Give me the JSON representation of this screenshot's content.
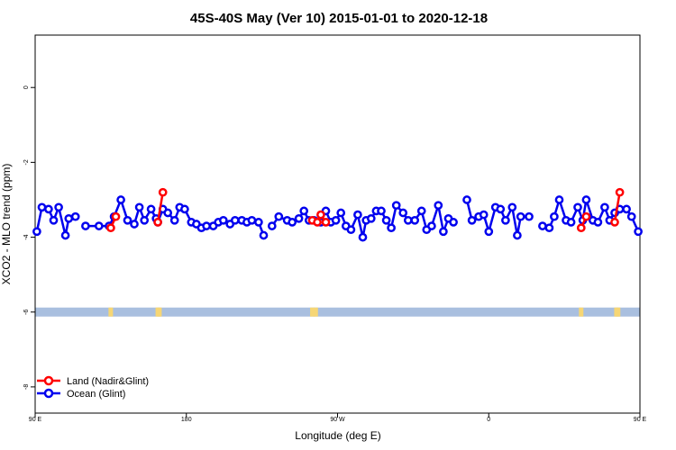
{
  "chart_data": {
    "type": "line",
    "title": "45S-40S May (Ver 10)   2015-01-01 to 2020-12-18",
    "xlabel": "Longitude (deg E)",
    "ylabel": "XCO2 - MLO trend (ppm)",
    "xlim": [
      90,
      450
    ],
    "ylim": [
      -8.7,
      1.4
    ],
    "x_ticks": [
      {
        "value": 90,
        "label": "90 E"
      },
      {
        "value": 180,
        "label": "180"
      },
      {
        "value": 270,
        "label": "90 W"
      },
      {
        "value": 360,
        "label": "0"
      },
      {
        "value": 450,
        "label": "90 E"
      },
      {
        "value": 540,
        "label": "180"
      }
    ],
    "y_ticks": [
      {
        "value": 0,
        "label": "0"
      },
      {
        "value": -2,
        "label": "-2"
      },
      {
        "value": -4,
        "label": "-4"
      },
      {
        "value": -6,
        "label": "-6"
      },
      {
        "value": -8,
        "label": "-8"
      }
    ],
    "grid": false,
    "legend_position": "bottom-left",
    "colors": {
      "land": "#ff0000",
      "ocean": "#0000ee",
      "map_ocean": "#a9bfdf",
      "map_land": "#f6d675"
    },
    "surface_strip": {
      "y": -6,
      "land_longitudes": [
        135,
        163,
        164,
        255,
        257,
        415,
        436,
        437
      ]
    },
    "series": [
      {
        "name": "Land (Nadir&Glint)",
        "color": "#ff0000",
        "segments": [
          [
            [
              135,
              -3.75
            ],
            [
              138,
              -3.45
            ]
          ],
          [
            [
              163,
              -3.6
            ],
            [
              166,
              -2.8
            ]
          ],
          [
            [
              255,
              -3.55
            ],
            [
              258,
              -3.6
            ]
          ],
          [
            [
              260,
              -3.4
            ],
            [
              263,
              -3.6
            ]
          ],
          [
            [
              415,
              -3.75
            ],
            [
              418,
              -3.45
            ]
          ],
          [
            [
              435,
              -3.6
            ],
            [
              438,
              -2.8
            ]
          ]
        ]
      },
      {
        "name": "Ocean (Glint)",
        "color": "#0000ee",
        "segments": [
          [
            [
              91,
              -3.85
            ],
            [
              94,
              -3.2
            ],
            [
              98,
              -3.25
            ],
            [
              101,
              -3.55
            ],
            [
              104,
              -3.2
            ],
            [
              108,
              -3.95
            ],
            [
              110,
              -3.5
            ],
            [
              114,
              -3.45
            ]
          ],
          [
            [
              120,
              -3.7
            ],
            [
              128,
              -3.7
            ],
            [
              134,
              -3.7
            ],
            [
              137,
              -3.45
            ],
            [
              141,
              -3.0
            ],
            [
              145,
              -3.55
            ],
            [
              149,
              -3.65
            ],
            [
              152,
              -3.2
            ],
            [
              155,
              -3.55
            ],
            [
              159,
              -3.25
            ],
            [
              162,
              -3.5
            ],
            [
              163,
              -3.6
            ],
            [
              166,
              -3.25
            ],
            [
              169,
              -3.35
            ],
            [
              173,
              -3.55
            ],
            [
              176,
              -3.2
            ],
            [
              179,
              -3.25
            ],
            [
              183,
              -3.6
            ],
            [
              186,
              -3.65
            ],
            [
              189,
              -3.75
            ],
            [
              192,
              -3.7
            ],
            [
              196,
              -3.7
            ],
            [
              199,
              -3.6
            ],
            [
              202,
              -3.55
            ],
            [
              206,
              -3.65
            ],
            [
              209,
              -3.55
            ],
            [
              213,
              -3.55
            ],
            [
              216,
              -3.6
            ],
            [
              219,
              -3.55
            ],
            [
              223,
              -3.6
            ],
            [
              226,
              -3.95
            ]
          ],
          [
            [
              231,
              -3.7
            ],
            [
              235,
              -3.45
            ],
            [
              240,
              -3.55
            ],
            [
              243,
              -3.6
            ],
            [
              247,
              -3.5
            ],
            [
              250,
              -3.3
            ],
            [
              253,
              -3.55
            ],
            [
              256,
              -3.55
            ],
            [
              260,
              -3.6
            ],
            [
              263,
              -3.3
            ],
            [
              266,
              -3.6
            ],
            [
              269,
              -3.55
            ],
            [
              272,
              -3.35
            ],
            [
              275,
              -3.7
            ],
            [
              278,
              -3.8
            ],
            [
              282,
              -3.4
            ],
            [
              285,
              -4.0
            ],
            [
              287,
              -3.55
            ],
            [
              290,
              -3.5
            ],
            [
              293,
              -3.3
            ],
            [
              296,
              -3.3
            ],
            [
              299,
              -3.55
            ],
            [
              302,
              -3.75
            ],
            [
              305,
              -3.15
            ],
            [
              309,
              -3.35
            ],
            [
              312,
              -3.55
            ],
            [
              316,
              -3.55
            ],
            [
              320,
              -3.3
            ],
            [
              323,
              -3.8
            ],
            [
              326,
              -3.7
            ],
            [
              330,
              -3.15
            ],
            [
              333,
              -3.85
            ],
            [
              336,
              -3.5
            ],
            [
              339,
              -3.6
            ]
          ],
          [
            [
              347,
              -3.0
            ],
            [
              350,
              -3.55
            ],
            [
              354,
              -3.45
            ],
            [
              357,
              -3.4
            ],
            [
              360,
              -3.85
            ],
            [
              364,
              -3.2
            ],
            [
              367,
              -3.25
            ],
            [
              370,
              -3.55
            ],
            [
              374,
              -3.2
            ],
            [
              377,
              -3.95
            ],
            [
              379,
              -3.45
            ],
            [
              384,
              -3.45
            ]
          ],
          [
            [
              392,
              -3.7
            ],
            [
              396,
              -3.75
            ],
            [
              399,
              -3.45
            ],
            [
              402,
              -3.0
            ],
            [
              406,
              -3.55
            ],
            [
              409,
              -3.6
            ],
            [
              413,
              -3.2
            ],
            [
              416,
              -3.55
            ],
            [
              418,
              -3.0
            ],
            [
              422,
              -3.55
            ],
            [
              425,
              -3.6
            ],
            [
              429,
              -3.2
            ],
            [
              432,
              -3.55
            ],
            [
              435,
              -3.35
            ],
            [
              438,
              -3.25
            ],
            [
              442,
              -3.25
            ],
            [
              445,
              -3.45
            ],
            [
              449,
              -3.85
            ]
          ]
        ]
      }
    ]
  }
}
